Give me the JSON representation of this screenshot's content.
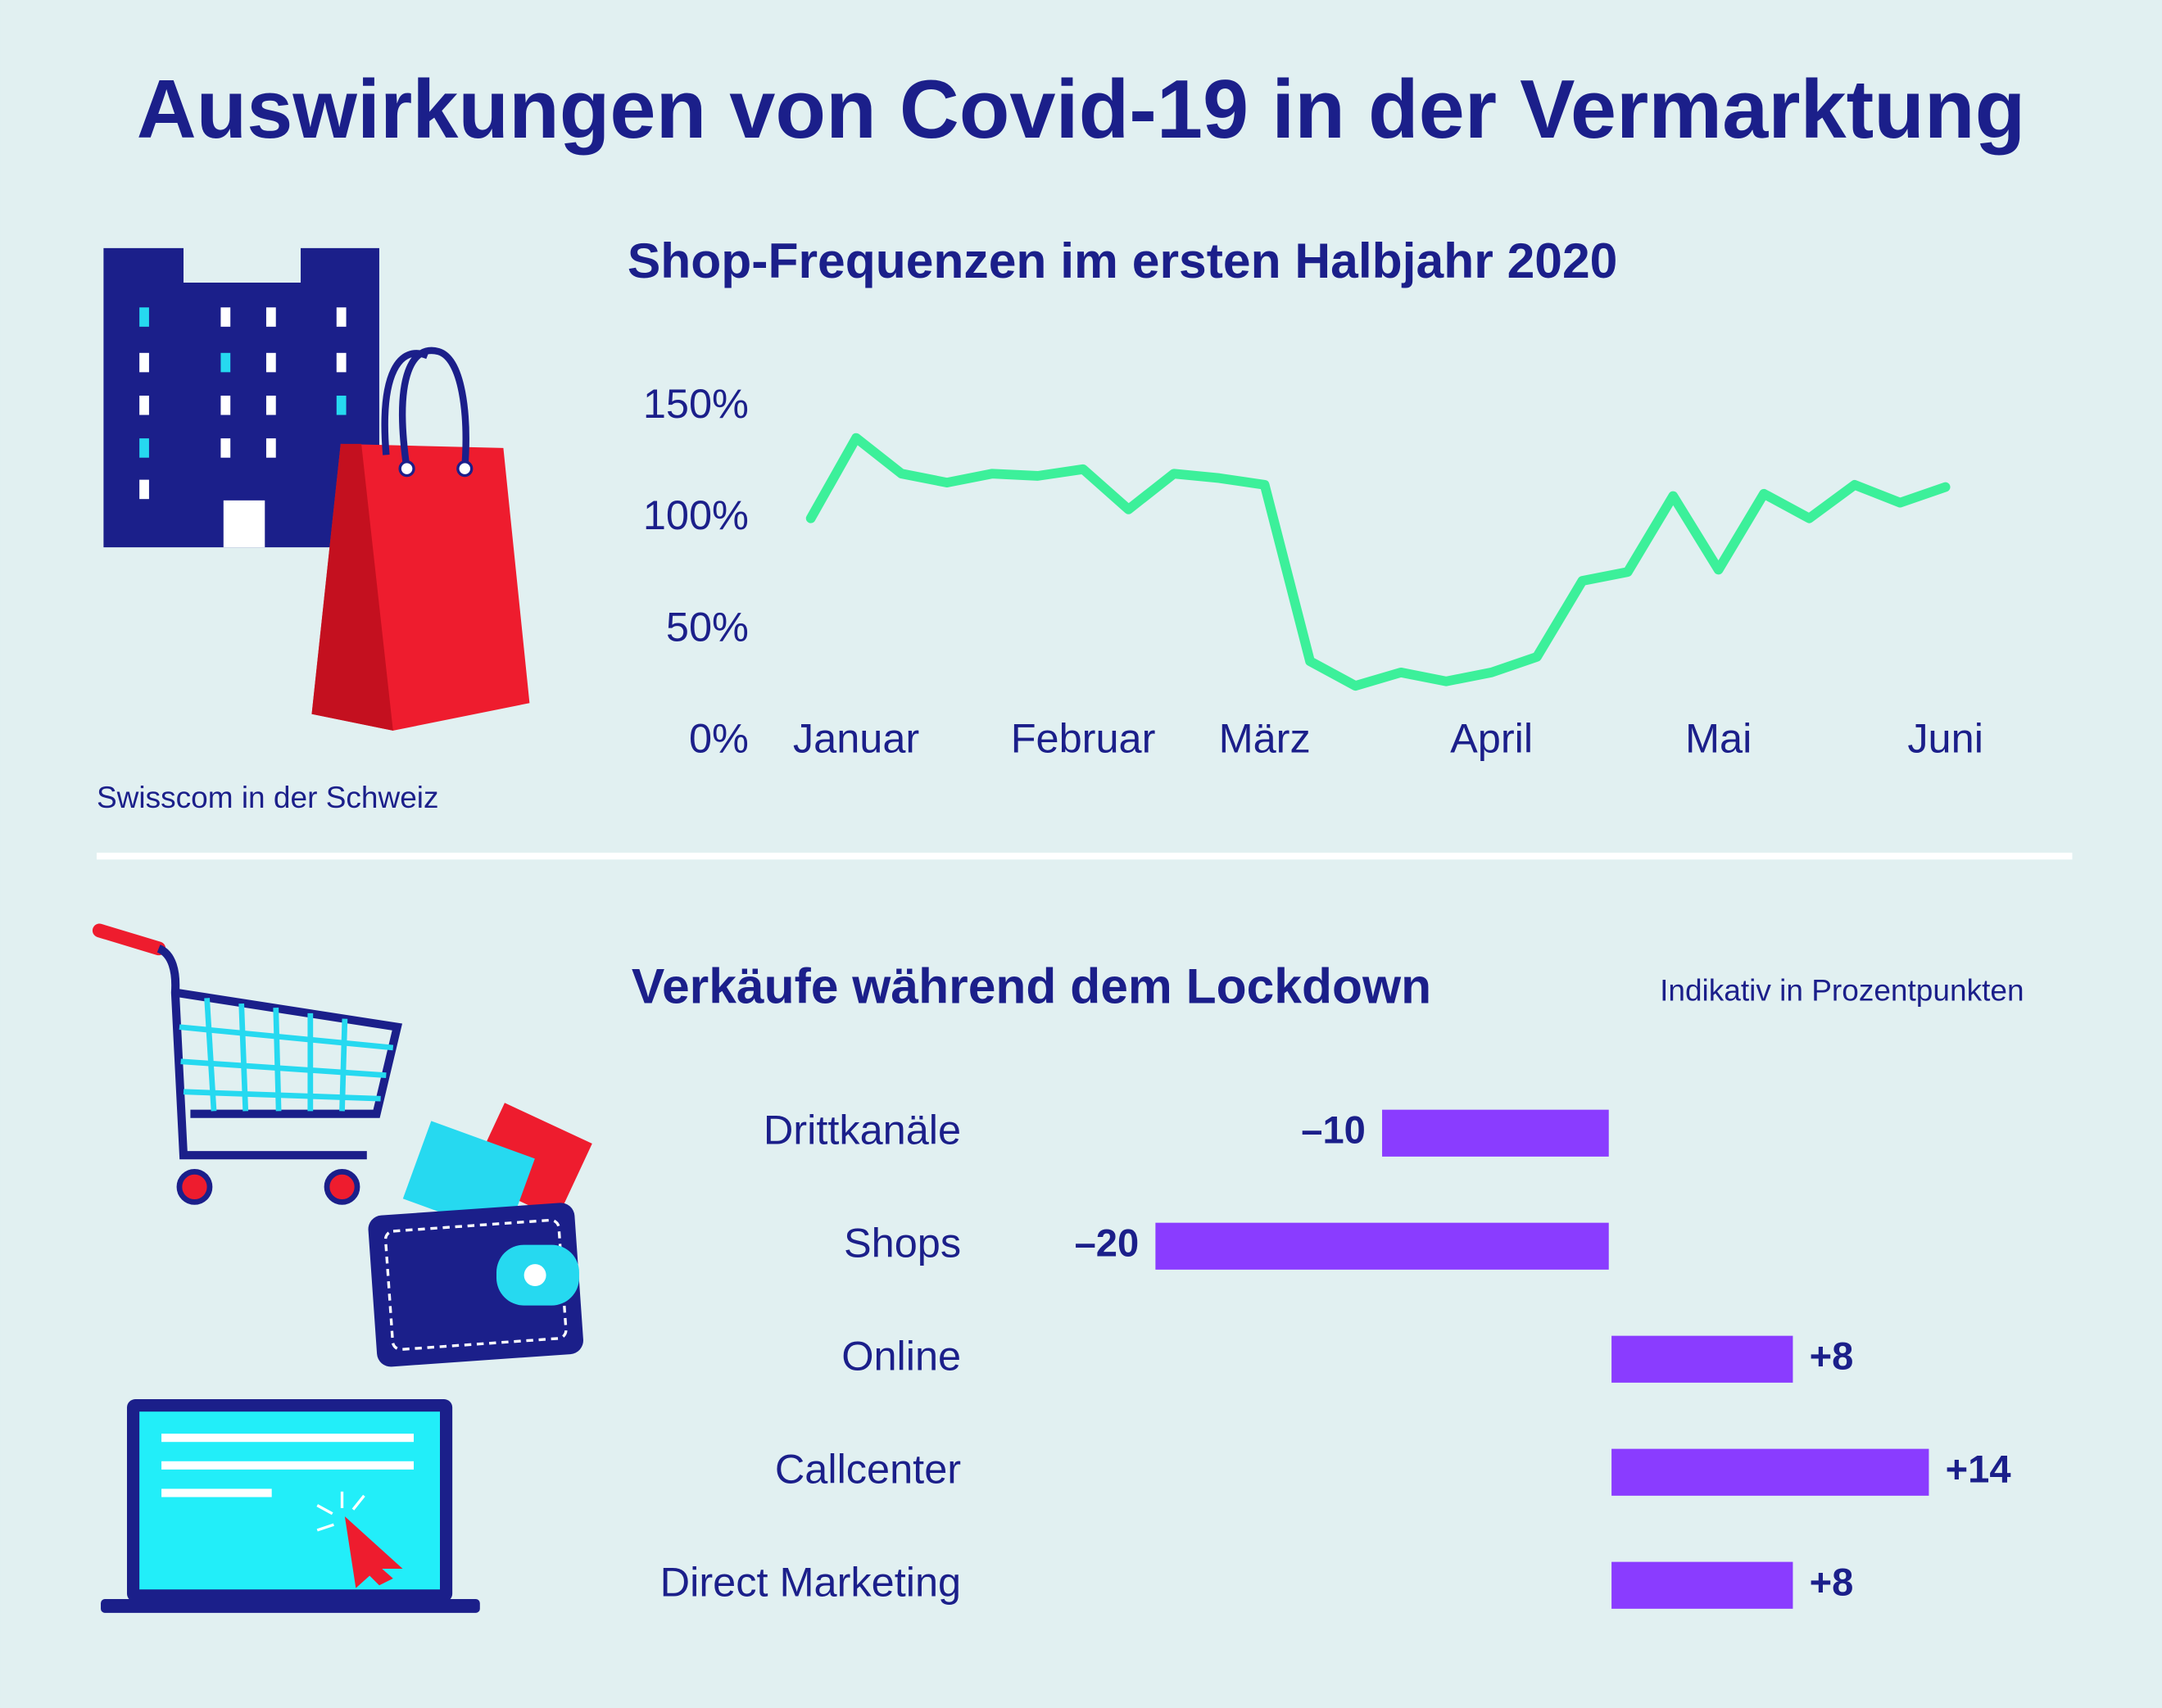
{
  "title": "Auswirkungen von Covid-19 in der Vermarktung",
  "subtitle": "Swisscom in der Schweiz",
  "chart_data": [
    {
      "type": "line",
      "title": "Shop-Frequenzen im ersten Halbjahr 2020",
      "categories": [
        null,
        "Januar",
        null,
        null,
        null,
        null,
        "Februar",
        null,
        null,
        null,
        "März",
        null,
        null,
        null,
        null,
        "April",
        null,
        null,
        null,
        null,
        "Mai",
        null,
        null,
        null,
        null,
        "Juni"
      ],
      "values": [
        100,
        136,
        120,
        116,
        120,
        119,
        122,
        104,
        120,
        118,
        115,
        36,
        25,
        31,
        27,
        31,
        38,
        72,
        76,
        110,
        77,
        111,
        100,
        115,
        107,
        114
      ],
      "color": "#3cf09a",
      "ylim": [
        0,
        150
      ],
      "yticks": [
        {
          "value": 0,
          "label": "0%"
        },
        {
          "value": 50,
          "label": "50%"
        },
        {
          "value": 100,
          "label": "100%"
        },
        {
          "value": 150,
          "label": "150%"
        }
      ],
      "grid": false
    },
    {
      "type": "bar",
      "title": "Verkäufe während dem Lockdown",
      "subtitle": "Indikativ in Prozentpunkten",
      "orientation": "horizontal",
      "categories": [
        "Drittkanäle",
        "Shops",
        "Online",
        "Callcenter",
        "Direct Marketing"
      ],
      "values": [
        -10,
        -20,
        8,
        14,
        8
      ],
      "value_labels": [
        "–10",
        "–20",
        "+8",
        "+14",
        "+8"
      ],
      "color": "#8a3cff",
      "xlim": [
        -20,
        14
      ]
    }
  ]
}
